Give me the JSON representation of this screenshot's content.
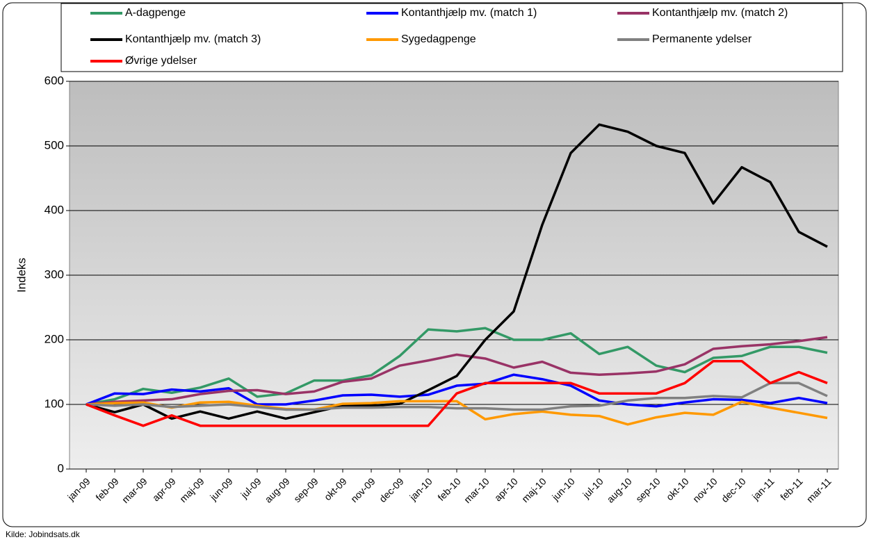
{
  "chart_data": {
    "type": "line",
    "ylabel": "Indeks",
    "source": "Kilde: Jobindsats.dk",
    "categories": [
      "jan-09",
      "feb-09",
      "mar-09",
      "apr-09",
      "maj-09",
      "jun-09",
      "jul-09",
      "aug-09",
      "sep-09",
      "okt-09",
      "nov-09",
      "dec-09",
      "jan-10",
      "feb-10",
      "mar-10",
      "apr-10",
      "maj-10",
      "jun-10",
      "jul-10",
      "aug-10",
      "sep-10",
      "okt-10",
      "nov-10",
      "dec-10",
      "jan-11",
      "feb-11",
      "mar-11"
    ],
    "ylim": [
      0,
      600
    ],
    "yticks": [
      0,
      100,
      200,
      300,
      400,
      500,
      600
    ],
    "grid": true,
    "series": [
      {
        "name": "A-dagpenge",
        "color": "#339966",
        "values": [
          100,
          108,
          124,
          118,
          126,
          140,
          112,
          117,
          137,
          137,
          145,
          175,
          216,
          213,
          218,
          200,
          200,
          210,
          178,
          189,
          160,
          150,
          172,
          175,
          189,
          189,
          180
        ]
      },
      {
        "name": "Kontanthjælp mv. (match 1)",
        "color": "#0000ff",
        "values": [
          100,
          117,
          116,
          123,
          120,
          125,
          100,
          100,
          106,
          114,
          115,
          112,
          115,
          129,
          132,
          146,
          139,
          129,
          106,
          100,
          97,
          103,
          108,
          107,
          102,
          110,
          102
        ]
      },
      {
        "name": "Kontanthjælp mv. (match 2)",
        "color": "#993366",
        "values": [
          100,
          104,
          106,
          108,
          116,
          121,
          122,
          116,
          120,
          135,
          140,
          160,
          168,
          177,
          171,
          157,
          166,
          149,
          146,
          148,
          151,
          162,
          186,
          190,
          193,
          198,
          204
        ]
      },
      {
        "name": "Kontanthjælp mv. (match 3)",
        "color": "#000000",
        "values": [
          100,
          88,
          100,
          78,
          89,
          78,
          89,
          78,
          88,
          98,
          98,
          101,
          122,
          144,
          200,
          244,
          378,
          489,
          533,
          522,
          500,
          489,
          411,
          467,
          444,
          367,
          344
        ]
      },
      {
        "name": "Sygedagpenge",
        "color": "#ff9900",
        "values": [
          100,
          102,
          103,
          95,
          103,
          104,
          98,
          93,
          92,
          101,
          102,
          105,
          105,
          105,
          77,
          85,
          89,
          84,
          82,
          69,
          80,
          87,
          84,
          104,
          95,
          87,
          79
        ]
      },
      {
        "name": "Permanente ydelser",
        "color": "#808080",
        "values": [
          100,
          98,
          100,
          96,
          98,
          100,
          96,
          92,
          92,
          95,
          95,
          96,
          96,
          94,
          94,
          92,
          92,
          97,
          98,
          106,
          110,
          110,
          113,
          111,
          133,
          133,
          113
        ]
      },
      {
        "name": "Øvrige ydelser",
        "color": "#ff0000",
        "values": [
          100,
          83,
          67,
          83,
          67,
          67,
          67,
          67,
          67,
          67,
          67,
          67,
          67,
          117,
          133,
          133,
          133,
          133,
          117,
          117,
          117,
          133,
          167,
          167,
          133,
          150,
          133
        ]
      }
    ]
  }
}
